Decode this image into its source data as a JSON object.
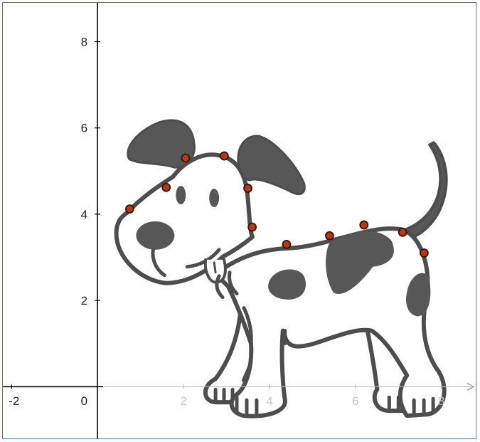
{
  "graph": {
    "x_tick_labels": [
      {
        "value": -2,
        "label": "-2",
        "faint": false
      },
      {
        "value": 0,
        "label": "0",
        "faint": false
      },
      {
        "value": 2,
        "label": "2",
        "faint": true
      },
      {
        "value": 4,
        "label": "4",
        "faint": true
      },
      {
        "value": 6,
        "label": "6",
        "faint": true
      },
      {
        "value": 8,
        "label": "8",
        "faint": true
      }
    ],
    "y_tick_labels": [
      {
        "value": 2,
        "label": "2"
      },
      {
        "value": 4,
        "label": "4"
      },
      {
        "value": 6,
        "label": "6"
      },
      {
        "value": 8,
        "label": "8"
      }
    ],
    "x_range": [
      -2.2,
      8.8
    ],
    "y_range": [
      -1.2,
      8.9
    ],
    "points": [
      {
        "x": 0.75,
        "y": 4.12
      },
      {
        "x": 1.6,
        "y": 4.62
      },
      {
        "x": 2.05,
        "y": 5.3
      },
      {
        "x": 2.95,
        "y": 5.35
      },
      {
        "x": 3.5,
        "y": 4.6
      },
      {
        "x": 3.6,
        "y": 3.7
      },
      {
        "x": 4.4,
        "y": 3.3
      },
      {
        "x": 5.4,
        "y": 3.5
      },
      {
        "x": 6.2,
        "y": 3.75
      },
      {
        "x": 7.1,
        "y": 3.58
      },
      {
        "x": 7.6,
        "y": 3.1
      }
    ],
    "colors": {
      "axis": "#000000",
      "frame": "#4a76b8",
      "point_fill": "#b23a16",
      "point_stroke": "#3b0f05",
      "dog_outline": "#4d4d4d",
      "dog_patch": "#575757"
    },
    "image": "dog-cartoon"
  }
}
